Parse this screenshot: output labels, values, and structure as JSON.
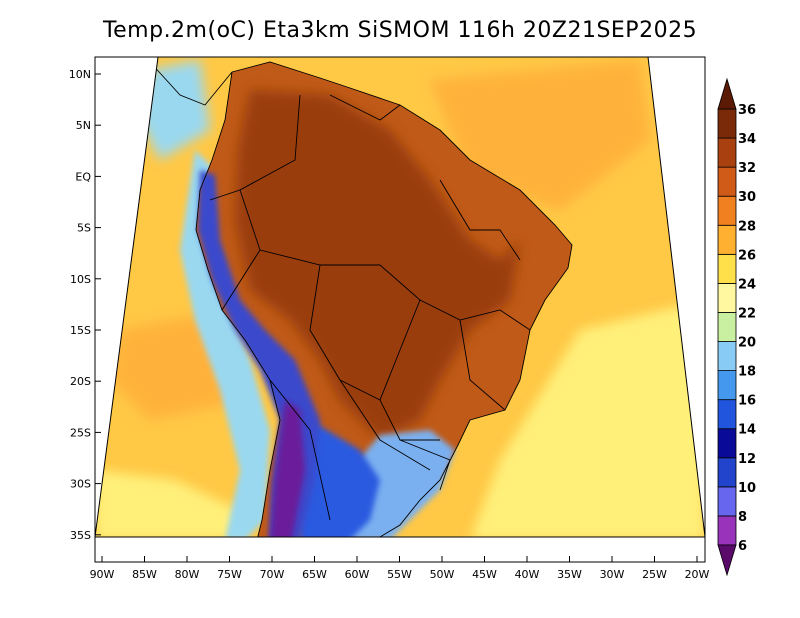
{
  "title": "Temp.2m(oC) Eta3km SiSMOM 116h 20Z21SEP2025",
  "lat_ticks": [
    {
      "value": 10,
      "label": "10N"
    },
    {
      "value": 5,
      "label": "5N"
    },
    {
      "value": 0,
      "label": "EQ"
    },
    {
      "value": -5,
      "label": "5S"
    },
    {
      "value": -10,
      "label": "10S"
    },
    {
      "value": -15,
      "label": "15S"
    },
    {
      "value": -20,
      "label": "20S"
    },
    {
      "value": -25,
      "label": "25S"
    },
    {
      "value": -30,
      "label": "30S"
    },
    {
      "value": -35,
      "label": "35S"
    }
  ],
  "lon_ticks": [
    {
      "value": -90,
      "label": "90W"
    },
    {
      "value": -85,
      "label": "85W"
    },
    {
      "value": -80,
      "label": "80W"
    },
    {
      "value": -75,
      "label": "75W"
    },
    {
      "value": -70,
      "label": "70W"
    },
    {
      "value": -65,
      "label": "65W"
    },
    {
      "value": -60,
      "label": "60W"
    },
    {
      "value": -55,
      "label": "55W"
    },
    {
      "value": -50,
      "label": "50W"
    },
    {
      "value": -45,
      "label": "45W"
    },
    {
      "value": -40,
      "label": "40W"
    },
    {
      "value": -35,
      "label": "35W"
    },
    {
      "value": -30,
      "label": "30W"
    },
    {
      "value": -25,
      "label": "25W"
    },
    {
      "value": -20,
      "label": "20W"
    }
  ],
  "colorbar": {
    "levels": [
      "6",
      "8",
      "10",
      "12",
      "14",
      "16",
      "18",
      "20",
      "22",
      "24",
      "26",
      "28",
      "30",
      "32",
      "34",
      "36"
    ],
    "colors": [
      "#7a1a8c",
      "#9933bb",
      "#6666ee",
      "#2244cc",
      "#0a0a99",
      "#2255dd",
      "#4499ee",
      "#88ccf5",
      "#c8f0a0",
      "#fff8a0",
      "#ffe04a",
      "#ffb030",
      "#f08020",
      "#d05a18",
      "#a8400f",
      "#7a2a08"
    ],
    "low_color": "#5a0a6a",
    "high_color": "#5a1a05"
  },
  "field": {
    "ocean_color": "#ffc845",
    "ocean_warm_color": "#ffb23a",
    "ocean_cool_color": "#fff07a",
    "land_color": "#c05a18",
    "land_hot_color": "#9a3e10",
    "andes_cold_color": "#3a4acc",
    "andes_coldest_color": "#6a1a9a",
    "south_cold_color": "#2a5ae0",
    "south_cool_color": "#7ab0f0",
    "coast_cool_color": "#9ad8f0"
  }
}
